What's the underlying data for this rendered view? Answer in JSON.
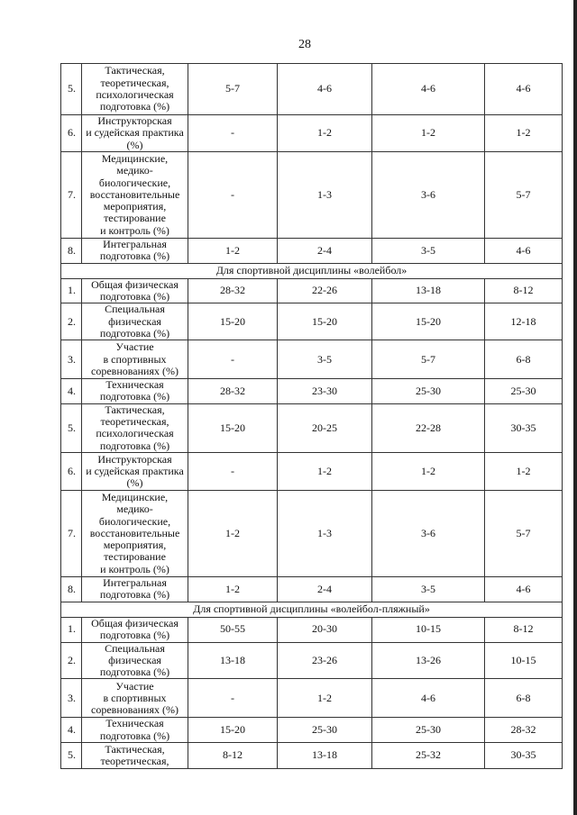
{
  "page_number": "28",
  "sections": [
    {
      "title": "",
      "rows": [
        {
          "num": "5.",
          "label": "Тактическая,\nтеоретическая,\nпсихологическая\nподготовка (%)",
          "values": [
            "5-7",
            "4-6",
            "4-6",
            "4-6"
          ]
        },
        {
          "num": "6.",
          "label": "Инструкторская\nи судейская практика\n(%)",
          "values": [
            "-",
            "1-2",
            "1-2",
            "1-2"
          ]
        },
        {
          "num": "7.",
          "label": "Медицинские,\nмедико-\nбиологические,\nвосстановительные\nмероприятия,\nтестирование\nи контроль (%)",
          "values": [
            "-",
            "1-3",
            "3-6",
            "5-7"
          ]
        },
        {
          "num": "8.",
          "label": "Интегральная\nподготовка (%)",
          "values": [
            "1-2",
            "2-4",
            "3-5",
            "4-6"
          ]
        }
      ]
    },
    {
      "title": "Для спортивной дисциплины «волейбол»",
      "rows": [
        {
          "num": "1.",
          "label": "Общая физическая\nподготовка (%)",
          "values": [
            "28-32",
            "22-26",
            "13-18",
            "8-12"
          ]
        },
        {
          "num": "2.",
          "label": "Специальная\nфизическая\nподготовка (%)",
          "values": [
            "15-20",
            "15-20",
            "15-20",
            "12-18"
          ]
        },
        {
          "num": "3.",
          "label": "Участие\nв спортивных\nсоревнованиях (%)",
          "values": [
            "-",
            "3-5",
            "5-7",
            "6-8"
          ]
        },
        {
          "num": "4.",
          "label": "Техническая\nподготовка (%)",
          "values": [
            "28-32",
            "23-30",
            "25-30",
            "25-30"
          ]
        },
        {
          "num": "5.",
          "label": "Тактическая,\nтеоретическая,\nпсихологическая\nподготовка (%)",
          "values": [
            "15-20",
            "20-25",
            "22-28",
            "30-35"
          ]
        },
        {
          "num": "6.",
          "label": "Инструкторская\nи судейская практика\n(%)",
          "values": [
            "-",
            "1-2",
            "1-2",
            "1-2"
          ]
        },
        {
          "num": "7.",
          "label": "Медицинские,\nмедико-\nбиологические,\nвосстановительные\nмероприятия,\nтестирование\nи контроль (%)",
          "values": [
            "1-2",
            "1-3",
            "3-6",
            "5-7"
          ]
        },
        {
          "num": "8.",
          "label": "Интегральная\nподготовка (%)",
          "values": [
            "1-2",
            "2-4",
            "3-5",
            "4-6"
          ]
        }
      ]
    },
    {
      "title": "Для спортивной дисциплины «волейбол-пляжный»",
      "rows": [
        {
          "num": "1.",
          "label": "Общая физическая\nподготовка (%)",
          "values": [
            "50-55",
            "20-30",
            "10-15",
            "8-12"
          ]
        },
        {
          "num": "2.",
          "label": "Специальная\nфизическая\nподготовка (%)",
          "values": [
            "13-18",
            "23-26",
            "13-26",
            "10-15"
          ]
        },
        {
          "num": "3.",
          "label": "Участие\nв спортивных\nсоревнованиях (%)",
          "values": [
            "-",
            "1-2",
            "4-6",
            "6-8"
          ]
        },
        {
          "num": "4.",
          "label": "Техническая\nподготовка (%)",
          "values": [
            "15-20",
            "25-30",
            "25-30",
            "28-32"
          ]
        },
        {
          "num": "5.",
          "label": "Тактическая,\nтеоретическая,",
          "values": [
            "8-12",
            "13-18",
            "25-32",
            "30-35"
          ]
        }
      ]
    }
  ]
}
